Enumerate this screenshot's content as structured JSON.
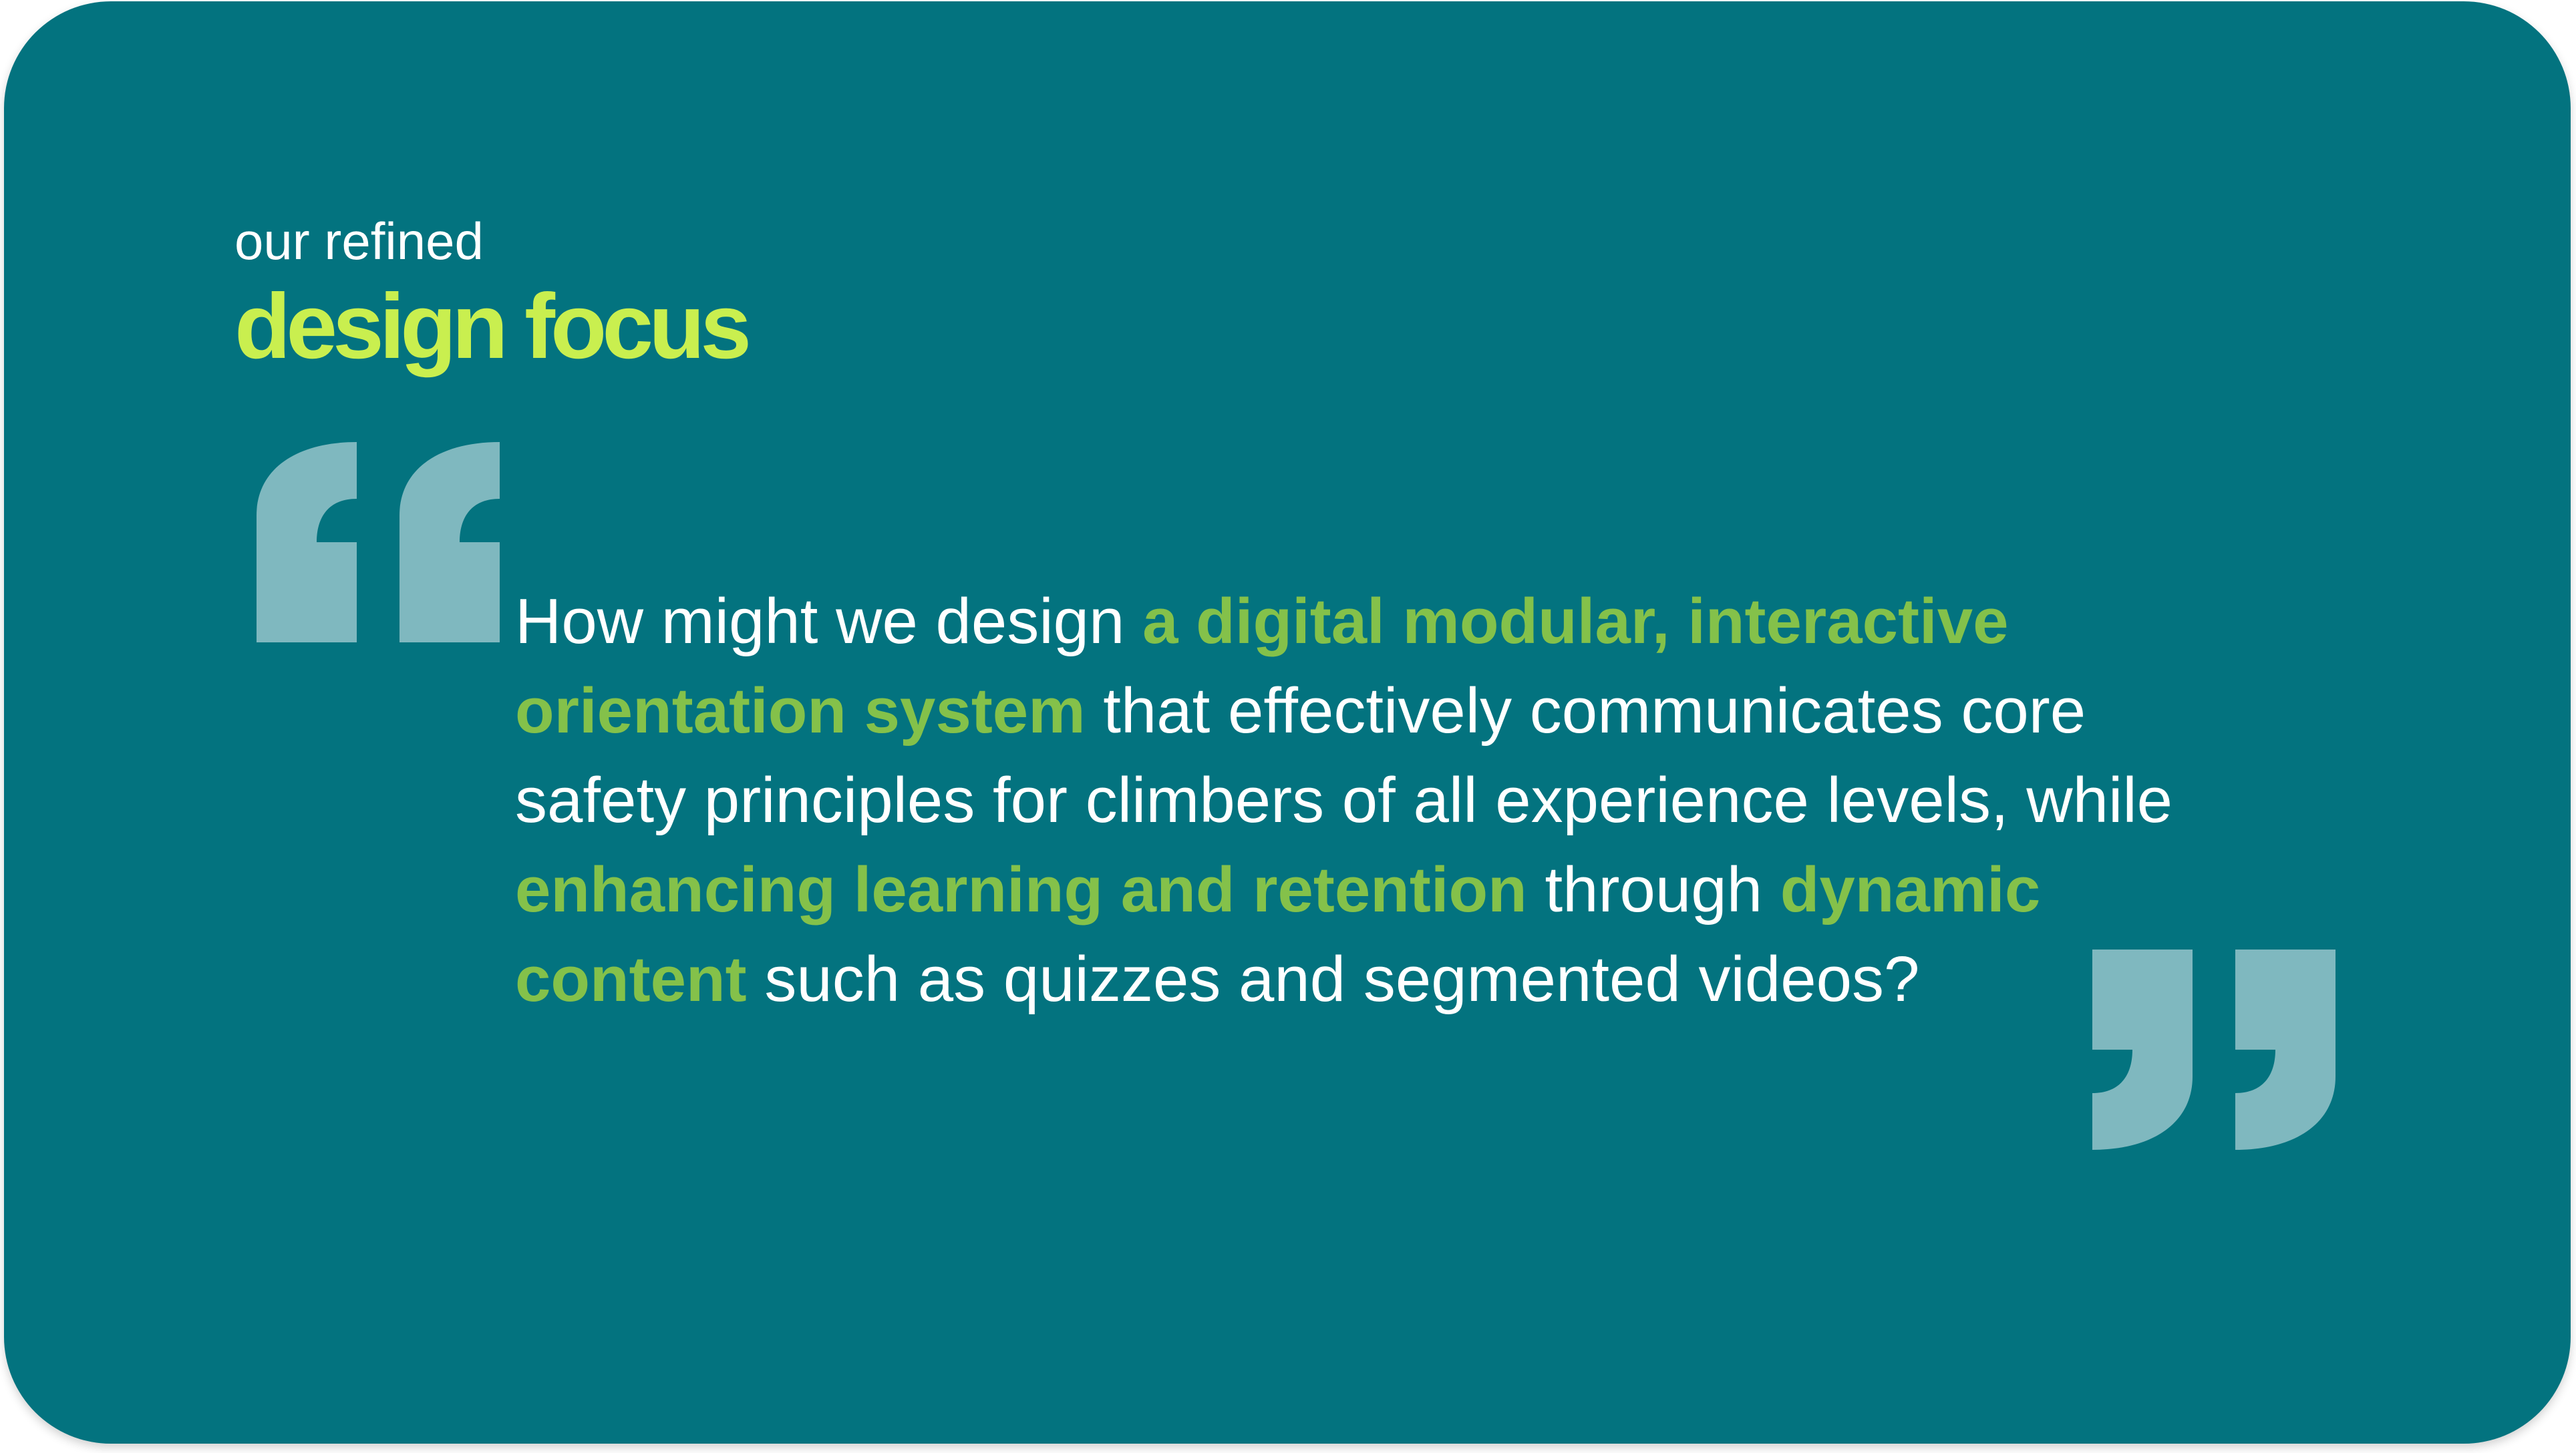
{
  "header": {
    "eyebrow": "our refined",
    "title": "design focus"
  },
  "colors": {
    "card_background": "#03737f",
    "title_accent": "#c9ef4f",
    "highlight": "#84c14a",
    "quote_marks": "#7fb8bf",
    "body_text": "#ffffff"
  },
  "icons": {
    "open_quote": "open-quote-icon",
    "close_quote": "close-quote-icon"
  },
  "quote": {
    "seg_01": "How might we design ",
    "seg_02": "a digital modular, interactive",
    "seg_03": "orientation system",
    "seg_04": " that effectively communicates core",
    "seg_05": "safety principles for climbers of all experience levels, while",
    "seg_06": "enhancing learning and retention",
    "seg_07": " through ",
    "seg_08": "dynamic",
    "seg_09": "content",
    "seg_10": " such as quizzes and segmented videos?"
  }
}
